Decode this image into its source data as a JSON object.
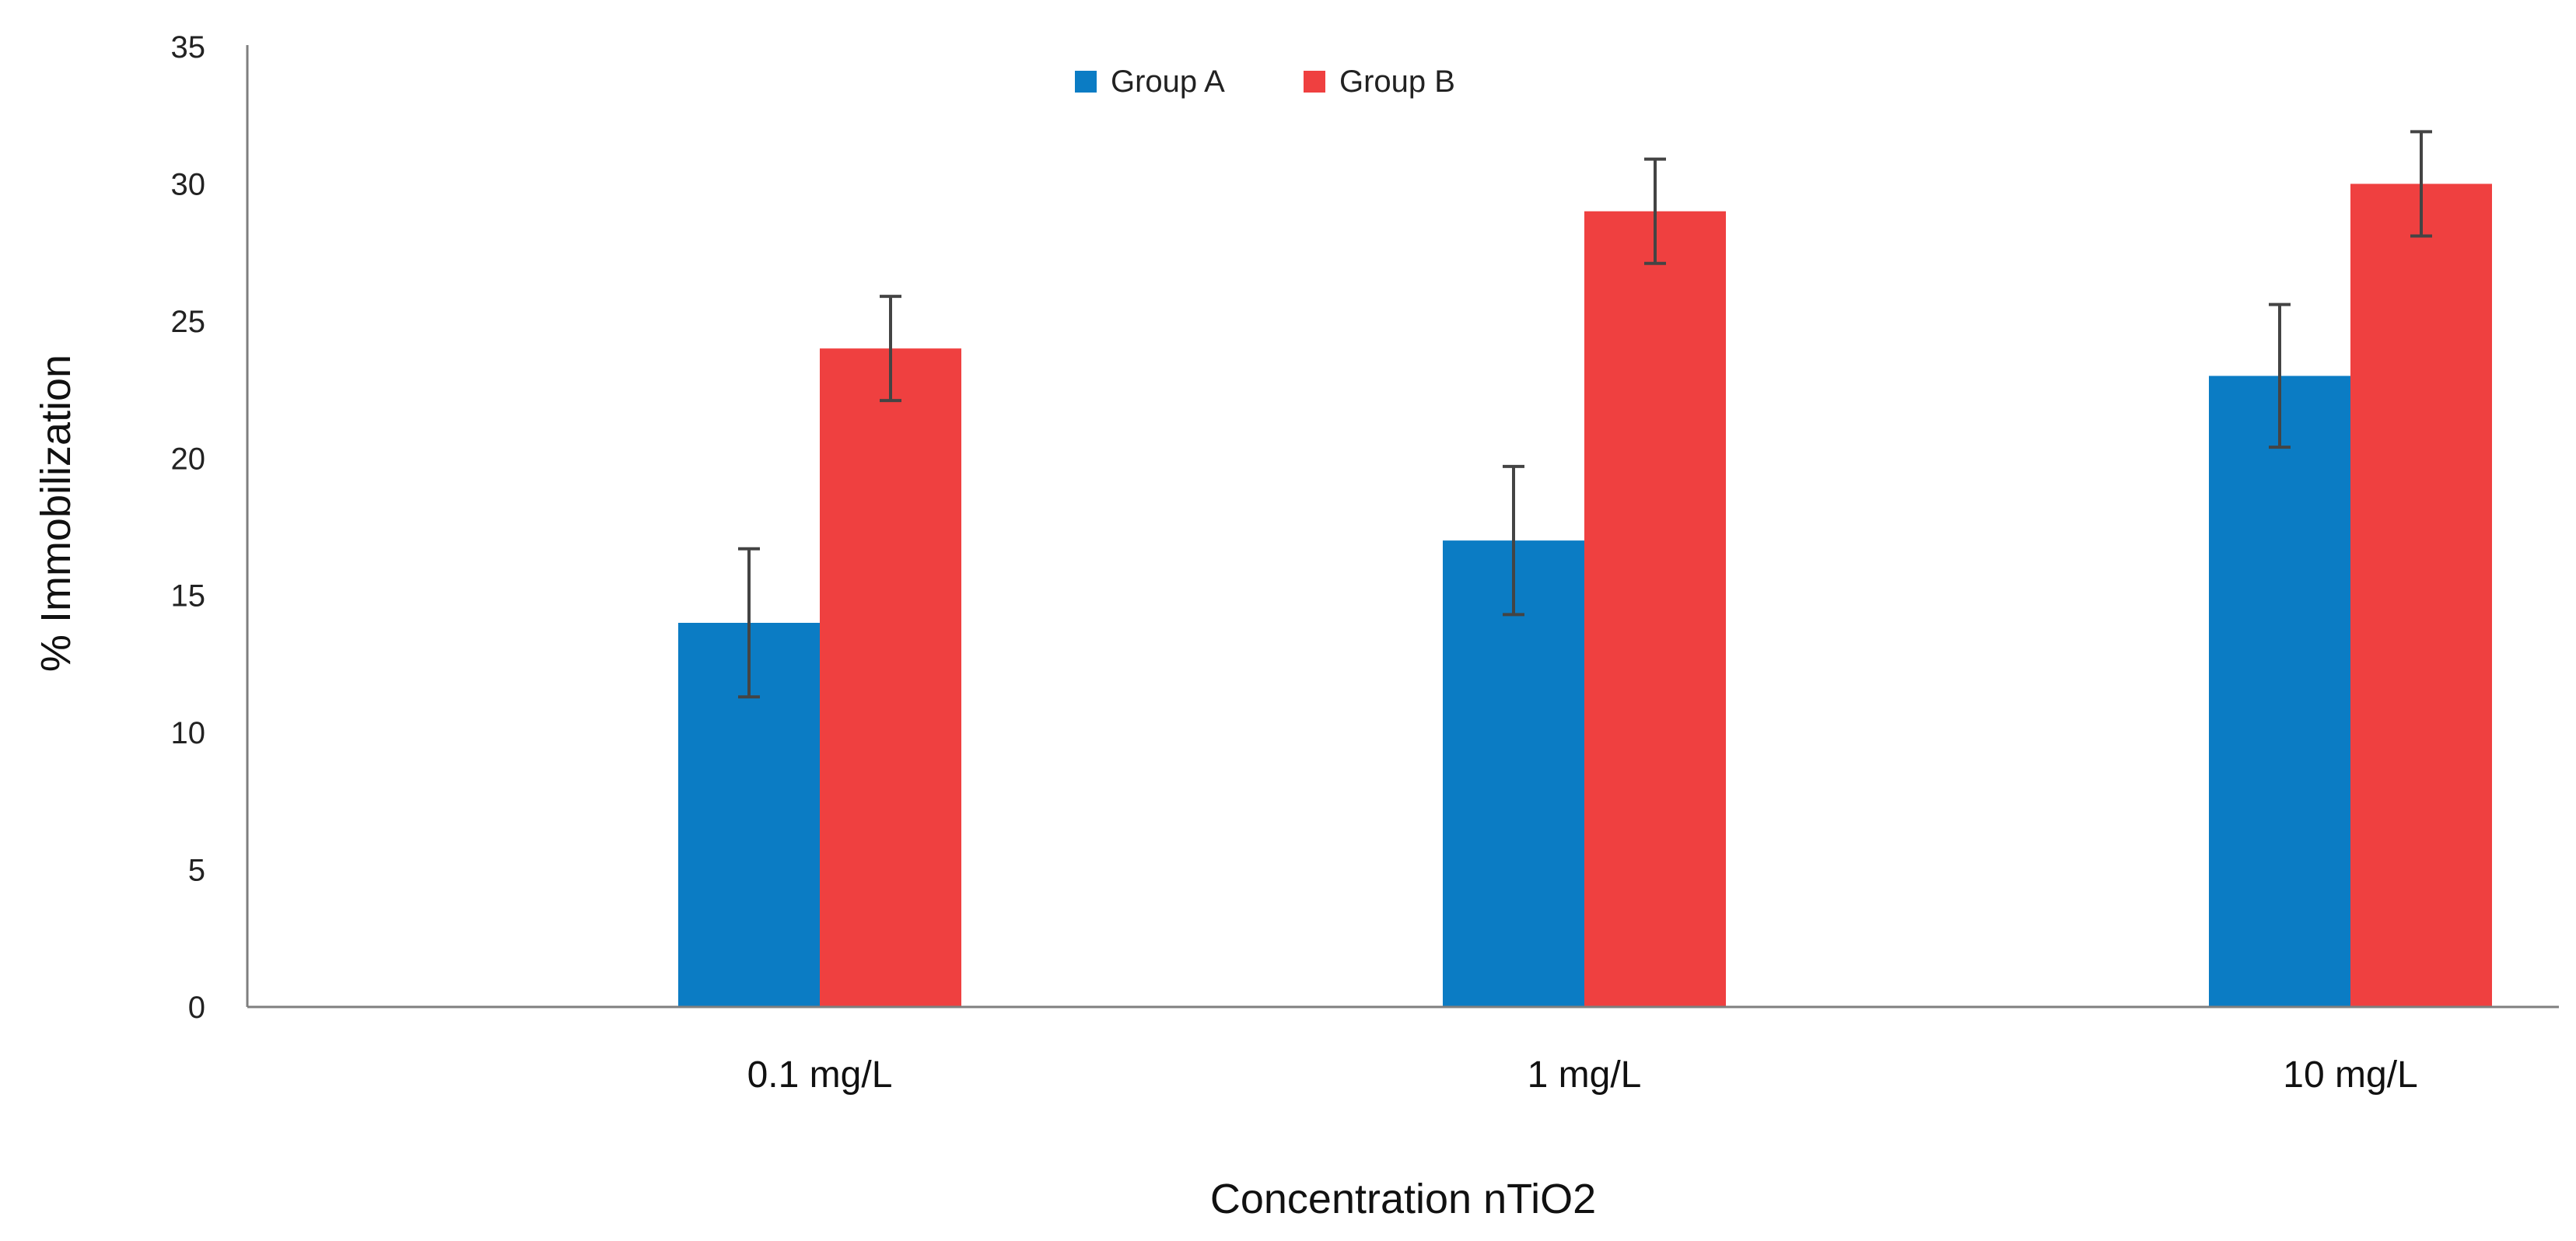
{
  "chart_data": {
    "type": "bar",
    "title": "",
    "xlabel": "Concentration nTiO2",
    "ylabel": "% Immobilization",
    "categories": [
      "0.1 mg/L",
      "1 mg/L",
      "10 mg/L"
    ],
    "series": [
      {
        "name": "Group A",
        "color": "#0b7cc4",
        "values": [
          14,
          17,
          23
        ],
        "errors": [
          2.7,
          2.7,
          2.6
        ]
      },
      {
        "name": "Group B",
        "color": "#ef4040",
        "values": [
          24,
          29,
          30
        ],
        "errors": [
          1.9,
          1.9,
          1.9
        ]
      }
    ],
    "ylim": [
      0,
      35
    ],
    "yticks": [
      0,
      5,
      10,
      15,
      20,
      25,
      30,
      35
    ],
    "grid": false,
    "legend_position": "top-center"
  }
}
